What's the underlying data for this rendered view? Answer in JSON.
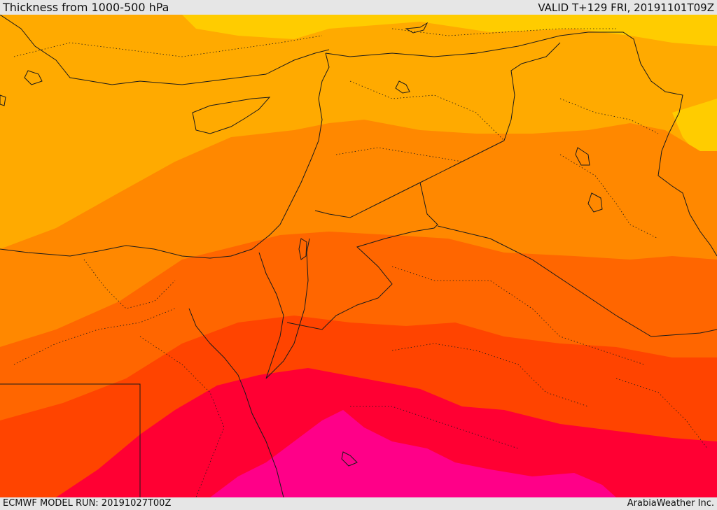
{
  "header": {
    "title": "Thickness from 1000-500 hPa",
    "valid": "VALID T+129 FRI, 20191101T09Z"
  },
  "footer": {
    "model_run": "ECMWF MODEL RUN: 20191027T00Z",
    "credit": "ArabiaWeather Inc."
  },
  "map": {
    "thickness_colors": [
      "#ffcc00",
      "#ffaa00",
      "#ff8800",
      "#ff6600",
      "#ff4400",
      "#ff0033",
      "#ff0088"
    ],
    "border_color": "#1a1a1a"
  }
}
